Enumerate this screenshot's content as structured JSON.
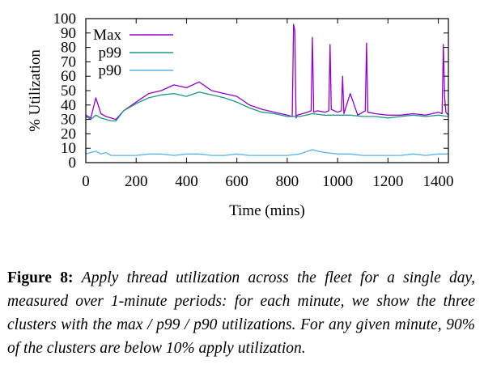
{
  "chart_data": {
    "type": "line",
    "xlabel": "Time (mins)",
    "ylabel": "% Utilization",
    "xlim": [
      0,
      1440
    ],
    "ylim": [
      0,
      100
    ],
    "xticks": [
      "0",
      "200",
      "400",
      "600",
      "800",
      "1000",
      "1200",
      "1400"
    ],
    "xtick_values": [
      0,
      200,
      400,
      600,
      800,
      1000,
      1200,
      1400
    ],
    "yticks": [
      "0",
      "10",
      "20",
      "30",
      "40",
      "50",
      "60",
      "70",
      "80",
      "90",
      "100"
    ],
    "ytick_values": [
      0,
      10,
      20,
      30,
      40,
      50,
      60,
      70,
      80,
      90,
      100
    ],
    "legend_position": "top-left",
    "grid": false,
    "series": [
      {
        "name": "Max",
        "color": "#9400d3",
        "x": [
          0,
          20,
          40,
          60,
          80,
          100,
          120,
          150,
          200,
          250,
          300,
          350,
          400,
          450,
          500,
          550,
          600,
          650,
          700,
          750,
          800,
          820,
          825,
          830,
          835,
          840,
          860,
          880,
          895,
          900,
          905,
          920,
          950,
          965,
          970,
          975,
          1000,
          1015,
          1020,
          1025,
          1050,
          1080,
          1110,
          1115,
          1120,
          1150,
          1200,
          1250,
          1300,
          1350,
          1400,
          1415,
          1420,
          1425,
          1430,
          1440
        ],
        "y": [
          33,
          31,
          45,
          34,
          32,
          31,
          30,
          36,
          42,
          48,
          50,
          54,
          52,
          56,
          50,
          48,
          46,
          40,
          37,
          35,
          33,
          32,
          96,
          92,
          31,
          33,
          34,
          35,
          36,
          87,
          35,
          36,
          35,
          36,
          82,
          37,
          35,
          36,
          60,
          34,
          48,
          33,
          36,
          83,
          35,
          34,
          33,
          33,
          34,
          33,
          35,
          34,
          82,
          46,
          35,
          33
        ]
      },
      {
        "name": "p99",
        "color": "#1a9980",
        "x": [
          0,
          20,
          40,
          60,
          80,
          100,
          120,
          150,
          200,
          250,
          300,
          350,
          400,
          450,
          500,
          550,
          600,
          650,
          700,
          750,
          800,
          850,
          900,
          950,
          1000,
          1050,
          1100,
          1150,
          1200,
          1250,
          1300,
          1350,
          1400,
          1440
        ],
        "y": [
          32,
          30,
          33,
          31,
          30,
          29,
          29,
          36,
          41,
          45,
          47,
          48,
          46,
          49,
          47,
          45,
          42,
          38,
          35,
          34,
          32,
          32,
          34,
          33,
          33,
          33,
          32,
          32,
          31,
          32,
          33,
          32,
          33,
          32
        ]
      },
      {
        "name": "p90",
        "color": "#56b4e9",
        "x": [
          0,
          20,
          40,
          60,
          80,
          100,
          150,
          200,
          250,
          300,
          350,
          400,
          450,
          500,
          550,
          600,
          650,
          700,
          750,
          800,
          850,
          900,
          920,
          950,
          1000,
          1050,
          1100,
          1150,
          1200,
          1250,
          1300,
          1350,
          1400,
          1440
        ],
        "y": [
          6,
          7,
          8,
          6,
          7,
          5,
          5,
          5,
          6,
          6,
          5,
          6,
          6,
          5,
          5,
          6,
          5,
          5,
          5,
          5,
          6,
          9,
          8,
          7,
          6,
          6,
          5,
          5,
          5,
          5,
          6,
          5,
          6,
          6
        ]
      }
    ]
  },
  "caption": {
    "label": "Figure 8:",
    "text": "Apply thread utilization across the fleet for a single day, measured over 1-minute periods: for each minute, we show the three clusters with the max / p99 / p90 utilizations. For any given minute, 90% of the clusters are below 10% apply utilization."
  }
}
